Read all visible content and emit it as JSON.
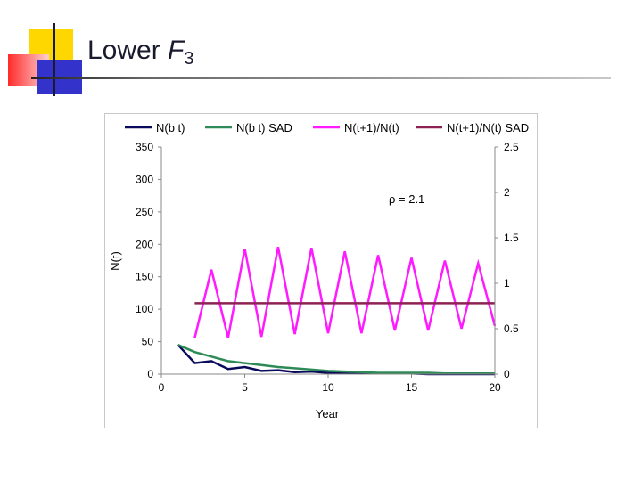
{
  "slide": {
    "title_main": "Lower ",
    "title_var": "F",
    "title_sub": "3"
  },
  "colors": {
    "deco_yellow": "#ffd700",
    "deco_red": "#ff3030",
    "deco_blue": "#3333cc",
    "title_rule": "#8a8a8a"
  },
  "chart_data": {
    "type": "line",
    "xlabel": "Year",
    "ylabel": "N(t)",
    "xlim": [
      0,
      20
    ],
    "ylim": [
      0,
      350
    ],
    "y2lim": [
      0,
      2.5
    ],
    "x_ticks": [
      "0",
      "5",
      "10",
      "15",
      "20"
    ],
    "y_ticks": [
      "0",
      "50",
      "100",
      "150",
      "200",
      "250",
      "300",
      "350"
    ],
    "y2_ticks": [
      "0",
      "0.5",
      "1",
      "1.5",
      "2",
      "2.5"
    ],
    "legend_position": "top",
    "annotation": "ρ = 2.1",
    "series": [
      {
        "name": "N(b t)",
        "axis": "left",
        "color": "#0a0a5c",
        "x": [
          1,
          2,
          3,
          4,
          5,
          6,
          7,
          8,
          9,
          10,
          11,
          12,
          13,
          14,
          15,
          16,
          17,
          18,
          19,
          20
        ],
        "values": [
          45,
          17,
          20,
          8,
          11,
          5,
          6,
          3,
          4,
          2,
          2,
          1,
          1,
          1,
          1,
          0,
          0,
          0,
          0,
          0
        ]
      },
      {
        "name": "N(b t) SAD",
        "axis": "left",
        "color": "#2e8b57",
        "x": [
          1,
          2,
          3,
          4,
          5,
          6,
          7,
          8,
          9,
          10,
          11,
          12,
          13,
          14,
          15,
          16,
          17,
          18,
          19,
          20
        ],
        "values": [
          45,
          34,
          27,
          20,
          17,
          14,
          11,
          9,
          7,
          5,
          4,
          3,
          2,
          2,
          2,
          2,
          1,
          1,
          1,
          1
        ]
      },
      {
        "name": "N(t+1)/N(t)",
        "axis": "right",
        "color": "#ff1aff",
        "x": [
          2,
          3,
          4,
          5,
          6,
          7,
          8,
          9,
          10,
          11,
          12,
          13,
          14,
          15,
          16,
          17,
          18,
          19,
          20
        ],
        "values": [
          0.4,
          1.15,
          0.4,
          1.38,
          0.41,
          1.4,
          0.44,
          1.39,
          0.45,
          1.35,
          0.45,
          1.31,
          0.48,
          1.28,
          0.48,
          1.25,
          0.5,
          1.22,
          0.53
        ]
      },
      {
        "name": "N(t+1)/N(t) SAD",
        "axis": "right",
        "color": "#8b2252",
        "x": [
          2,
          20
        ],
        "values": [
          0.78,
          0.78
        ]
      }
    ]
  }
}
